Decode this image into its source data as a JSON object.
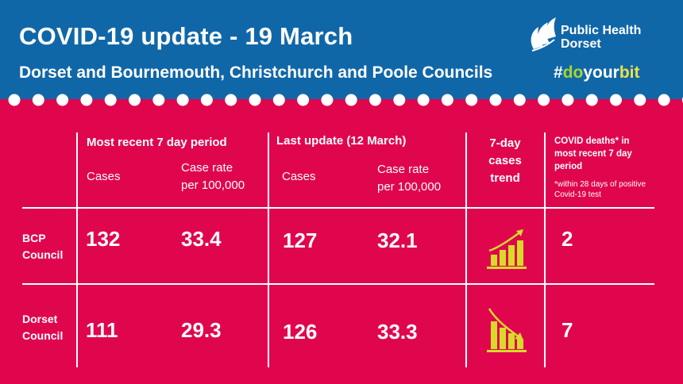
{
  "header": {
    "title": "COVID-19 update - 19 March",
    "subtitle": "Dorset and Bournemouth, Christchurch and Poole Councils",
    "hashtag": {
      "part1": "#",
      "part2": "do",
      "part3": "your",
      "part4": "bit"
    },
    "logo": {
      "line1": "Public Health",
      "line2": "Dorset",
      "icon": "leaf-logo-icon"
    }
  },
  "colors": {
    "header_bg": "#1067A8",
    "body_bg": "#E0064E",
    "hashtag_green": "#A8D62C",
    "hashtag_yellow": "#EBE14A",
    "trend_icon": "#D8DA2A"
  },
  "table": {
    "groups": {
      "recent": "Most recent 7 day period",
      "last": "Last update (12 March)",
      "trend": [
        "7-day",
        "cases",
        "trend"
      ],
      "deaths": [
        "COVID deaths* in",
        "most recent 7 day",
        "period"
      ],
      "deaths_note": [
        "*within 28 days of positive",
        "Covid-19 test"
      ]
    },
    "subheads": {
      "cases": "Cases",
      "rate": [
        "Case rate",
        "per 100,000"
      ]
    },
    "rows": [
      {
        "label": [
          "BCP",
          "Council"
        ],
        "recent_cases": "132",
        "recent_rate": "33.4",
        "last_cases": "127",
        "last_rate": "32.1",
        "trend": "up",
        "trend_icon": "trend-up-icon",
        "deaths": "2"
      },
      {
        "label": [
          "Dorset",
          "Council"
        ],
        "recent_cases": "111",
        "recent_rate": "29.3",
        "last_cases": "126",
        "last_rate": "33.3",
        "trend": "down",
        "trend_icon": "trend-down-icon",
        "deaths": "7"
      }
    ]
  }
}
